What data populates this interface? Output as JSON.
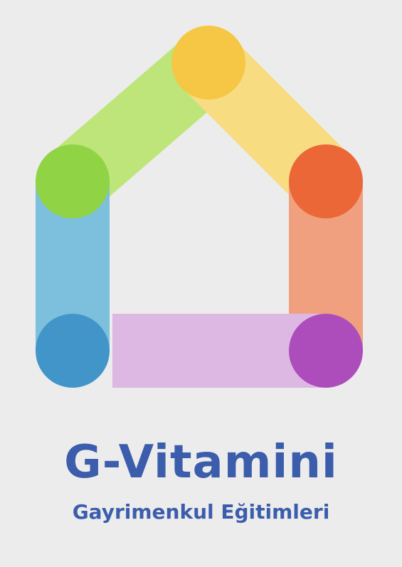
{
  "brand": {
    "name": "G-Vitamini",
    "tagline": "Gayrimenkul Eğitimleri"
  },
  "logo": {
    "icon": "house-icon",
    "segments": {
      "roof_left": "#bde57a",
      "roof_right": "#f8dc82",
      "wall_left": "#7dc0dd",
      "wall_right": "#f0a07f",
      "floor": "#dcb8e3"
    },
    "joints": {
      "peak": "#f5c745",
      "left_corner": "#90d345",
      "right_corner": "#eb6737",
      "bottom_left": "#4295c9",
      "bottom_right": "#ad4cbb"
    }
  },
  "colors": {
    "background": "#ececec",
    "brand_text": "#3b5dab"
  }
}
